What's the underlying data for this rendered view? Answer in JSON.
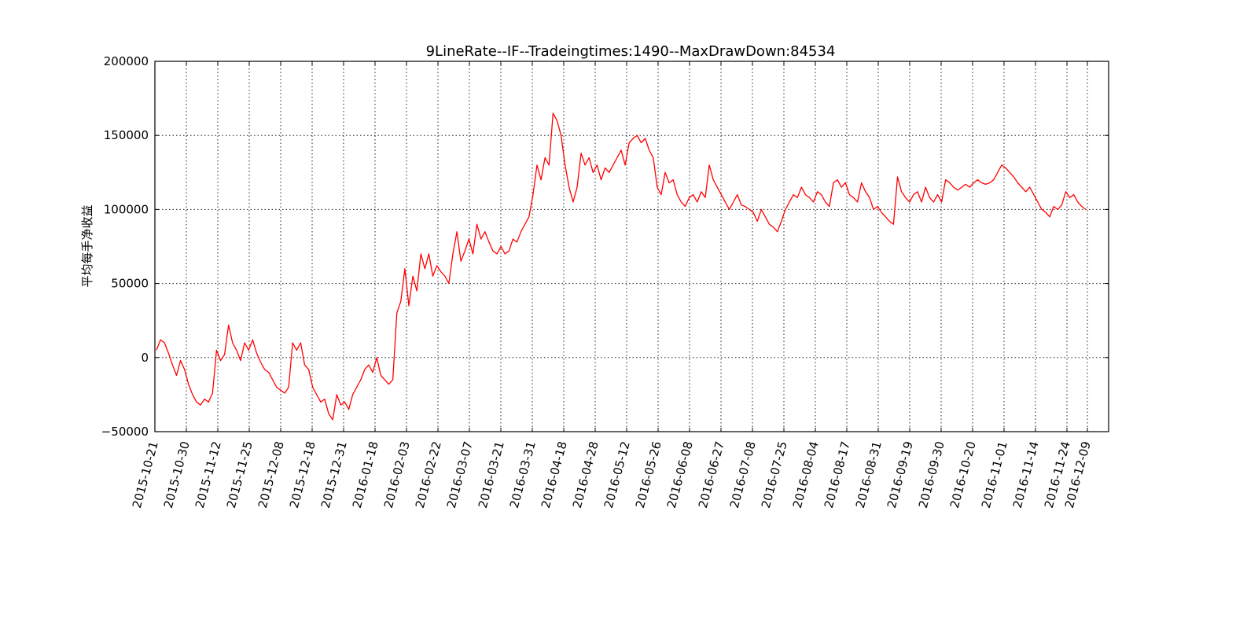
{
  "chart_data": {
    "type": "line",
    "title": "9LineRate--IF--Tradeingtimes:1490--MaxDrawDown:84534",
    "xlabel": "",
    "ylabel": "平均每手净收益",
    "ylim": [
      -50000,
      200000
    ],
    "yticks": [
      -50000,
      0,
      50000,
      100000,
      150000,
      200000
    ],
    "ytick_labels": [
      "−50000",
      "0",
      "50000",
      "100000",
      "150000",
      "200000"
    ],
    "xticks": [
      "2015-10-21",
      "2015-10-30",
      "2015-11-12",
      "2015-11-25",
      "2015-12-08",
      "2015-12-18",
      "2015-12-31",
      "2016-01-18",
      "2016-02-03",
      "2016-02-22",
      "2016-03-07",
      "2016-03-21",
      "2016-03-31",
      "2016-04-18",
      "2016-04-28",
      "2016-05-12",
      "2016-05-26",
      "2016-06-08",
      "2016-06-27",
      "2016-07-08",
      "2016-07-25",
      "2016-08-04",
      "2016-08-17",
      "2016-08-31",
      "2016-09-19",
      "2016-09-30",
      "2016-10-20",
      "2016-11-01",
      "2016-11-14",
      "2016-11-24",
      "2016-12-09"
    ],
    "grid": true,
    "series": [
      {
        "color": "#ff0000",
        "y": [
          5000,
          12000,
          10000,
          3000,
          -5000,
          -12000,
          -2000,
          -8000,
          -18000,
          -25000,
          -30000,
          -32000,
          -28000,
          -30000,
          -24000,
          5000,
          -2000,
          2000,
          22000,
          10000,
          5000,
          -2000,
          10000,
          5000,
          12000,
          3000,
          -3000,
          -8000,
          -10000,
          -15000,
          -20000,
          -22000,
          -24000,
          -20000,
          10000,
          5000,
          10000,
          -5000,
          -8000,
          -20000,
          -25000,
          -30000,
          -28000,
          -38000,
          -42000,
          -25000,
          -32000,
          -30000,
          -35000,
          -25000,
          -20000,
          -15000,
          -8000,
          -5000,
          -10000,
          0,
          -12000,
          -15000,
          -18000,
          -15000,
          30000,
          38000,
          60000,
          35000,
          55000,
          45000,
          70000,
          60000,
          70000,
          55000,
          62000,
          58000,
          55000,
          50000,
          70000,
          85000,
          65000,
          72000,
          80000,
          70000,
          90000,
          80000,
          85000,
          78000,
          72000,
          70000,
          75000,
          70000,
          72000,
          80000,
          78000,
          85000,
          90000,
          95000,
          110000,
          130000,
          120000,
          135000,
          130000,
          165000,
          160000,
          150000,
          130000,
          115000,
          105000,
          115000,
          138000,
          130000,
          135000,
          125000,
          130000,
          120000,
          128000,
          125000,
          130000,
          135000,
          140000,
          130000,
          145000,
          148000,
          150000,
          145000,
          148000,
          140000,
          135000,
          115000,
          110000,
          125000,
          118000,
          120000,
          110000,
          105000,
          102000,
          108000,
          110000,
          105000,
          112000,
          108000,
          130000,
          120000,
          115000,
          110000,
          105000,
          100000,
          105000,
          110000,
          103000,
          102000,
          100000,
          98000,
          92000,
          100000,
          95000,
          90000,
          88000,
          85000,
          92000,
          100000,
          105000,
          110000,
          108000,
          115000,
          110000,
          108000,
          105000,
          112000,
          110000,
          105000,
          102000,
          118000,
          120000,
          115000,
          118000,
          110000,
          108000,
          105000,
          118000,
          112000,
          108000,
          100000,
          102000,
          98000,
          95000,
          92000,
          90000,
          122000,
          112000,
          108000,
          105000,
          110000,
          112000,
          105000,
          115000,
          108000,
          105000,
          110000,
          105000,
          120000,
          118000,
          115000,
          113000,
          115000,
          117000,
          115000,
          118000,
          120000,
          118000,
          117000,
          118000,
          120000,
          125000,
          130000,
          128000,
          125000,
          122000,
          118000,
          115000,
          112000,
          115000,
          110000,
          105000,
          100000,
          98000,
          95000,
          102000,
          100000,
          103000,
          112000,
          108000,
          110000,
          105000,
          102000,
          100000
        ]
      }
    ]
  }
}
